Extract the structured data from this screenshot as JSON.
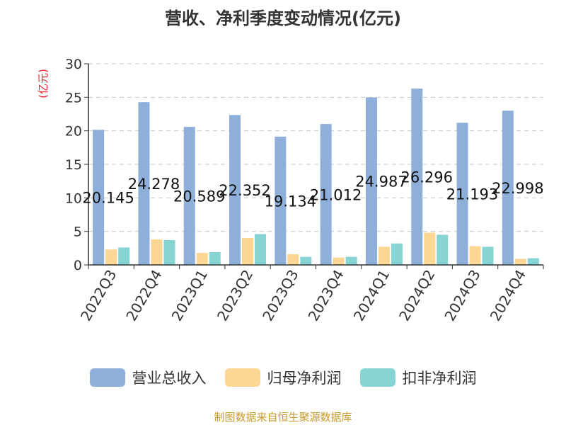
{
  "title": "营收、净利季度变动情况(亿元)",
  "source": "制图数据来自恒生聚源数据库",
  "colors": {
    "revenue": "#8fafdb",
    "net_profit": "#fcd693",
    "deducted_profit": "#86d5d4",
    "axis_title": "#e0202a",
    "text": "#333333",
    "grid": "#c8c8c8"
  },
  "chart_data": {
    "type": "bar",
    "title": "营收、净利季度变动情况(亿元)",
    "ylabel": "(亿元)",
    "xlabel": "",
    "ylim": [
      0,
      30
    ],
    "yticks": [
      0,
      5,
      10,
      15,
      20,
      25,
      30
    ],
    "grid": true,
    "legend_position": "bottom",
    "categories": [
      "2022Q3",
      "2022Q4",
      "2023Q1",
      "2023Q2",
      "2023Q3",
      "2023Q4",
      "2024Q1",
      "2024Q2",
      "2024Q3",
      "2024Q4"
    ],
    "series": [
      {
        "name": "营业总收入",
        "color_key": "revenue",
        "values": [
          20.145,
          24.278,
          20.589,
          22.352,
          19.134,
          21.012,
          24.987,
          26.296,
          21.193,
          22.998
        ],
        "labels": [
          "20.145",
          "24.278",
          "20.589",
          "22.352",
          "19.134",
          "21.012",
          "24.987",
          "26.296",
          "21.193",
          "22.998"
        ]
      },
      {
        "name": "归母净利润",
        "color_key": "net_profit",
        "values": [
          2.3,
          3.8,
          1.8,
          4.0,
          1.6,
          1.1,
          2.7,
          4.8,
          2.8,
          0.9
        ]
      },
      {
        "name": "扣非净利润",
        "color_key": "deducted_profit",
        "values": [
          2.6,
          3.7,
          1.9,
          4.6,
          1.2,
          1.2,
          3.2,
          4.5,
          2.7,
          1.0
        ]
      }
    ]
  }
}
